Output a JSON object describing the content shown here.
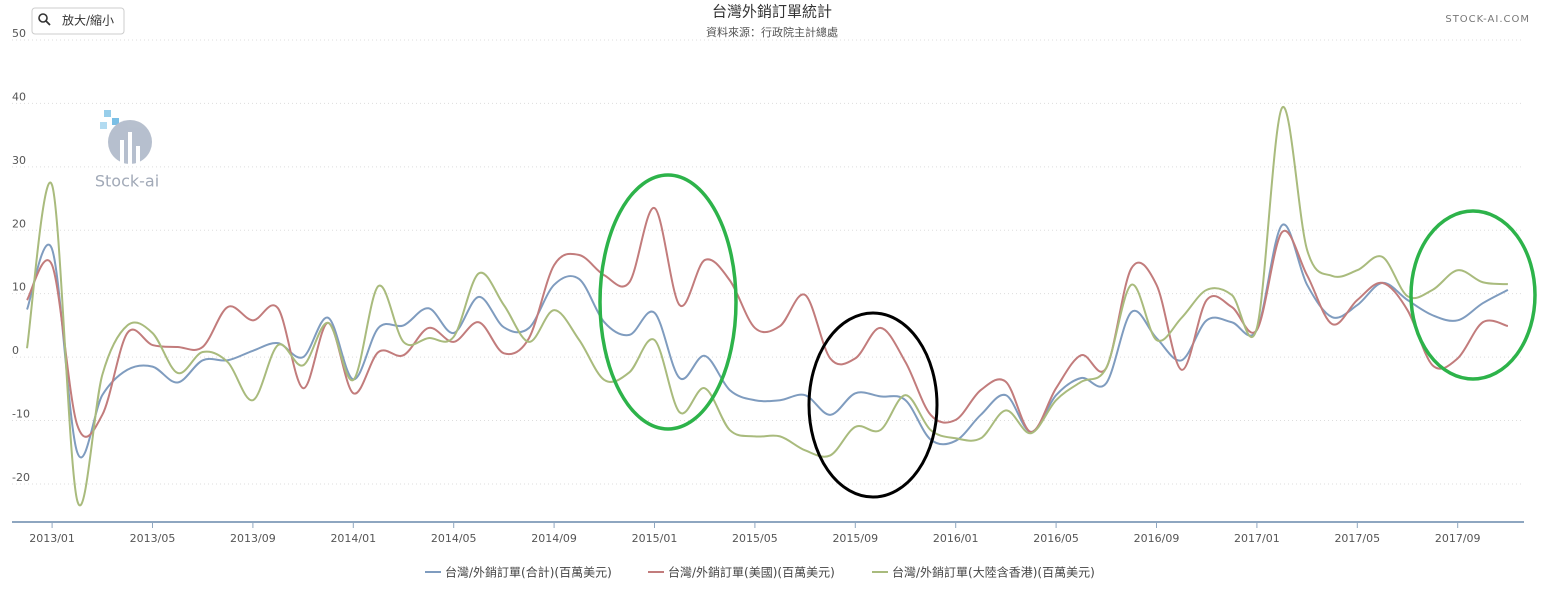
{
  "zoom_button": "放大/縮小",
  "credit": "STOCK-AI.COM",
  "logo": "Stock-ai",
  "chart_data": {
    "type": "line",
    "title": "台灣外銷訂單統計",
    "subtitle": "資料來源：行政院主計總處",
    "categories": [
      null,
      "2013/01",
      null,
      null,
      null,
      "2013/05",
      null,
      null,
      null,
      "2013/09",
      null,
      null,
      null,
      "2014/01",
      null,
      null,
      null,
      "2014/05",
      null,
      null,
      null,
      "2014/09",
      null,
      null,
      null,
      "2015/01",
      null,
      null,
      null,
      "2015/05",
      null,
      null,
      null,
      "2015/09",
      null,
      null,
      null,
      "2016/01",
      null,
      null,
      null,
      "2016/05",
      null,
      null,
      null,
      "2016/09",
      null,
      null,
      null,
      "2017/01",
      null,
      null,
      null,
      "2017/05",
      null,
      null,
      null,
      "2017/09",
      null,
      null
    ],
    "ylim": [
      -26,
      50
    ],
    "yticks": [
      50,
      40,
      30,
      20,
      10,
      0,
      -10,
      -20
    ],
    "grid": true,
    "series": [
      {
        "name": "台灣/外銷訂單(合計)(百萬美元)",
        "color": "#7f9cbf",
        "values": [
          7.5,
          17,
          -15,
          -6,
          -2,
          -1.5,
          -4,
          -0.5,
          -0.5,
          1,
          2.2,
          0,
          6.2,
          -3.5,
          4.6,
          5,
          7.7,
          3.8,
          9.5,
          4.7,
          4.6,
          11.4,
          12.3,
          5.5,
          3.5,
          7,
          -3.3,
          0.2,
          -5.2,
          -6.8,
          -6.8,
          -6,
          -9.1,
          -5.7,
          -6.2,
          -6.8,
          -13,
          -13.2,
          -9.1,
          -6,
          -11.8,
          -6,
          -3.3,
          -4.1,
          7.1,
          3,
          -0.5,
          5.8,
          5.5,
          4.3,
          20.8,
          11.4,
          6.3,
          8.2,
          11.7,
          9,
          6.6,
          5.8,
          8.5,
          10.6
        ]
      },
      {
        "name": "台灣/外銷訂單(美國)(百萬美元)",
        "color": "#c27c7c",
        "values": [
          9,
          14.5,
          -10.7,
          -9.1,
          3.8,
          1.9,
          1.6,
          1.6,
          7.9,
          5.8,
          7.7,
          -4.9,
          5.4,
          -5.7,
          0.8,
          0.3,
          4.6,
          2.4,
          5.5,
          0.6,
          3,
          14.5,
          16.1,
          12.9,
          11.8,
          23.5,
          8.2,
          15.3,
          12.1,
          4.6,
          4.9,
          9.8,
          -0.2,
          -0.2,
          4.6,
          -0.8,
          -9.1,
          -9.9,
          -5.2,
          -3.9,
          -11.8,
          -4.9,
          0.3,
          -1.7,
          14,
          11.4,
          -2,
          9,
          7.9,
          4.3,
          19.7,
          12.9,
          5.2,
          9,
          11.7,
          7.4,
          -1.3,
          -0.2,
          5.5,
          4.9
        ]
      },
      {
        "name": "台灣/外銷訂單(大陸含香港)(百萬美元)",
        "color": "#a9bb7d",
        "values": [
          1.4,
          27.1,
          -22.6,
          -2.8,
          5,
          3.8,
          -2.5,
          0.8,
          -0.8,
          -6.8,
          1.9,
          -1.3,
          5.4,
          -3.6,
          11.2,
          2.4,
          3,
          3.2,
          13.2,
          8.2,
          2.4,
          7.4,
          2.7,
          -3.6,
          -2.4,
          2.7,
          -8.7,
          -4.9,
          -11.5,
          -12.5,
          -12.5,
          -14.7,
          -15.5,
          -11,
          -11.5,
          -6,
          -11.5,
          -12.8,
          -12.8,
          -8.4,
          -12,
          -6.8,
          -3.9,
          -1.7,
          11.4,
          2.7,
          6.2,
          10.6,
          9.8,
          4.6,
          39.3,
          16.9,
          12.8,
          13.7,
          15.8,
          9.6,
          10.6,
          13.7,
          11.8,
          11.5
        ]
      }
    ]
  }
}
